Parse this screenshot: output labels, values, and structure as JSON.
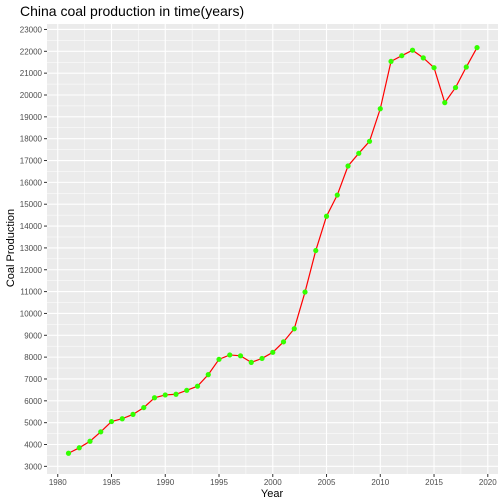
{
  "chart_data": {
    "type": "line",
    "title": "China coal production in time(years)",
    "xlabel": "Year",
    "ylabel": "Coal Production",
    "xlim": [
      1980,
      2020
    ],
    "ylim": [
      3000,
      23000
    ],
    "x_ticks": [
      1980,
      1985,
      1990,
      1995,
      2000,
      2005,
      2010,
      2015,
      2020
    ],
    "y_ticks": [
      3000,
      4000,
      5000,
      6000,
      7000,
      8000,
      9000,
      10000,
      11000,
      12000,
      13000,
      14000,
      15000,
      16000,
      17000,
      18000,
      19000,
      20000,
      21000,
      22000,
      23000
    ],
    "grid": true,
    "line_color": "#ff0000",
    "point_color": "#33ff00",
    "panel_color": "#ebebeb",
    "x": [
      1981,
      1982,
      1983,
      1984,
      1985,
      1986,
      1987,
      1988,
      1989,
      1990,
      1991,
      1992,
      1993,
      1994,
      1995,
      1996,
      1997,
      1998,
      1999,
      2000,
      2001,
      2002,
      2003,
      2004,
      2005,
      2006,
      2007,
      2008,
      2009,
      2010,
      2011,
      2012,
      2013,
      2014,
      2015,
      2016,
      2017,
      2018,
      2019
    ],
    "y": [
      3600,
      3850,
      4150,
      4580,
      5050,
      5180,
      5380,
      5690,
      6140,
      6270,
      6300,
      6480,
      6670,
      7200,
      7900,
      8100,
      8060,
      7760,
      7940,
      8220,
      8700,
      9300,
      10980,
      12880,
      14450,
      15420,
      16750,
      17330,
      17880,
      19370,
      21540,
      21800,
      22050,
      21700,
      21250,
      19650,
      20340,
      21280,
      22170
    ]
  }
}
